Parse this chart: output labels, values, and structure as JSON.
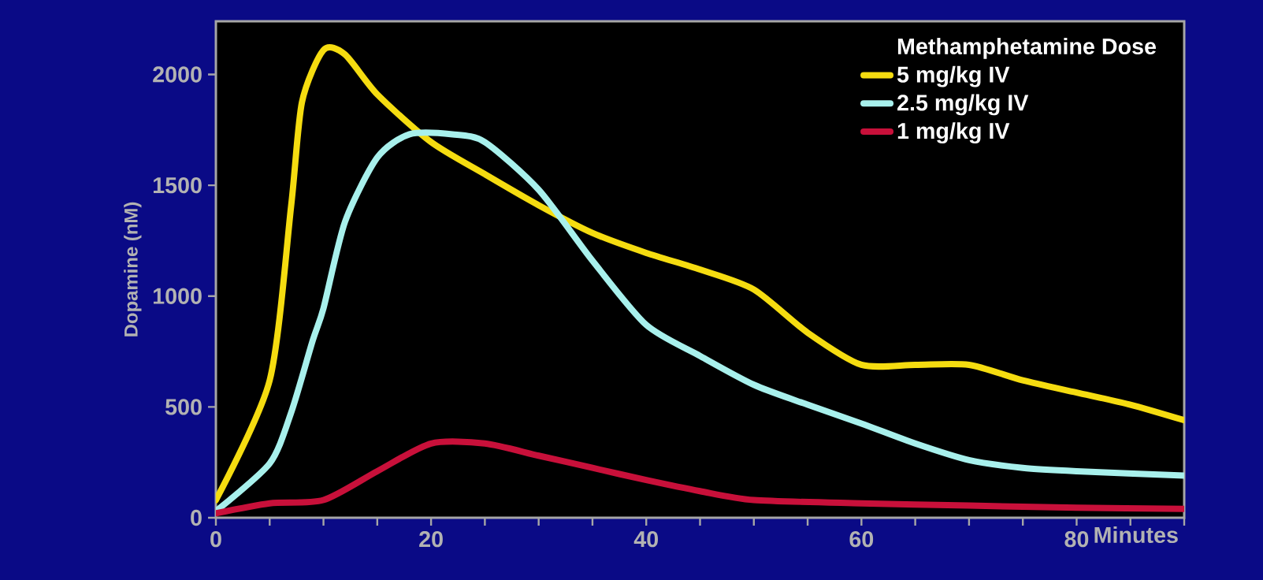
{
  "chart_data": {
    "type": "line",
    "xlabel": "Minutes",
    "ylabel": "Dopamine (nM)",
    "legend_title": "Methamphetamine Dose",
    "legend": "top right",
    "x": [
      0,
      5,
      7,
      8,
      10,
      12,
      15,
      20,
      25,
      30,
      35,
      40,
      45,
      50,
      55,
      60,
      65,
      70,
      75,
      80,
      85,
      90
    ],
    "series": [
      {
        "name": "5 mg/kg IV",
        "color": "#f5dc10",
        "values": [
          80,
          620,
          1410,
          1875,
          2110,
          2090,
          1910,
          1695,
          1550,
          1410,
          1285,
          1195,
          1120,
          1030,
          835,
          690,
          690,
          690,
          620,
          565,
          510,
          440
        ]
      },
      {
        "name": "2.5 mg/kg IV",
        "color": "#a8f0ec",
        "x": [
          0,
          5,
          7,
          9,
          10,
          12,
          15,
          18,
          22,
          25,
          30,
          35,
          40,
          45,
          50,
          55,
          60,
          65,
          70,
          75,
          80,
          90
        ],
        "values": [
          30,
          245,
          475,
          800,
          945,
          1335,
          1625,
          1730,
          1730,
          1695,
          1480,
          1160,
          870,
          730,
          600,
          510,
          425,
          335,
          260,
          225,
          210,
          190
        ]
      },
      {
        "name": "1 mg/kg IV",
        "color": "#c8103a",
        "x": [
          0,
          5,
          10,
          15,
          20,
          25,
          30,
          35,
          40,
          45,
          50,
          60,
          70,
          80,
          90
        ],
        "values": [
          20,
          65,
          80,
          210,
          335,
          335,
          280,
          225,
          170,
          120,
          80,
          65,
          55,
          45,
          40
        ]
      }
    ],
    "xlim": [
      0,
      90
    ],
    "ylim": [
      0,
      2240
    ],
    "xticks": [
      0,
      {
        "value": 5,
        "label": null
      },
      {
        "value": 10,
        "label": null
      },
      {
        "value": 15,
        "label": null
      },
      20,
      {
        "value": 25,
        "label": null
      },
      {
        "value": 30,
        "label": null
      },
      {
        "value": 35,
        "label": null
      },
      40,
      {
        "value": 45,
        "label": null
      },
      {
        "value": 50,
        "label": null
      },
      {
        "value": 55,
        "label": null
      },
      60,
      {
        "value": 65,
        "label": null
      },
      {
        "value": 70,
        "label": null
      },
      {
        "value": 75,
        "label": null
      },
      80,
      {
        "value": 85,
        "label": null
      },
      {
        "value": 90,
        "label": null
      }
    ],
    "yticks": [
      0,
      500,
      1000,
      1500,
      2000
    ]
  }
}
